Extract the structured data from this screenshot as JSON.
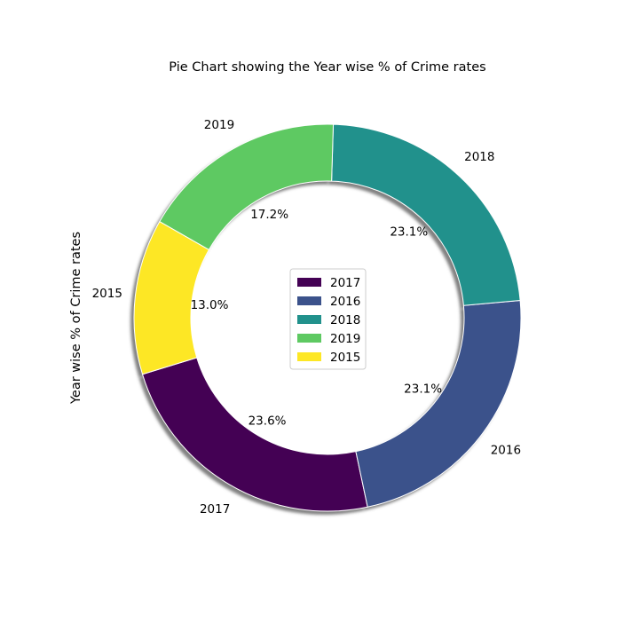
{
  "chart_data": {
    "type": "pie",
    "variant": "donut",
    "title": "Pie Chart showing the Year wise % of Crime rates",
    "ylabel": "Year wise % of Crime rates",
    "shadow": true,
    "legend_position": "center",
    "slices": [
      {
        "label": "2017",
        "value": 23.6,
        "pct_label": "23.6%",
        "color": "#440154"
      },
      {
        "label": "2016",
        "value": 23.1,
        "pct_label": "23.1%",
        "color": "#3b528b"
      },
      {
        "label": "2018",
        "value": 23.1,
        "pct_label": "23.1%",
        "color": "#21918c"
      },
      {
        "label": "2019",
        "value": 17.2,
        "pct_label": "17.2%",
        "color": "#5ec962"
      },
      {
        "label": "2015",
        "value": 13.0,
        "pct_label": "13.0%",
        "color": "#fde725"
      }
    ]
  }
}
